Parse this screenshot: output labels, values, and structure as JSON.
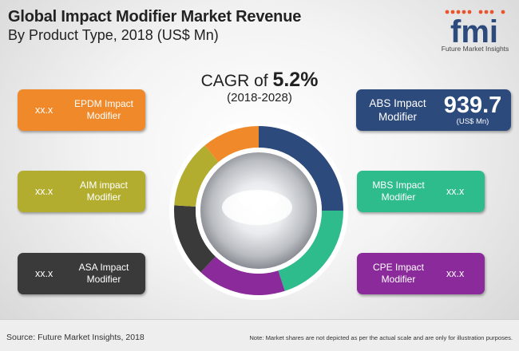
{
  "title": "Global Impact Modifier Market Revenue",
  "subtitle": "By Product Type, 2018 (US$ Mn)",
  "logo": {
    "text": "fmi",
    "tagline": "Future Market Insights"
  },
  "cagr": {
    "prefix": "CAGR of ",
    "value": "5.2%",
    "period": "(2018-2028)"
  },
  "highlight": {
    "label": "ABS Impact Modifier",
    "value": "939.7",
    "unit": "(US$ Mn)",
    "color": "#2c4a7c"
  },
  "segments_left": [
    {
      "label": "EPDM Impact Modifier",
      "value": "xx.x",
      "color": "#f0892a"
    },
    {
      "label": "AIM impact Modifier",
      "value": "xx.x",
      "color": "#b3ad2f"
    },
    {
      "label": "ASA Impact Modifier",
      "value": "xx.x",
      "color": "#3a3a3a"
    }
  ],
  "segments_right": [
    {
      "label": "MBS Impact Modifier",
      "value": "xx.x",
      "color": "#2ebc8c"
    },
    {
      "label": "CPE Impact Modifier",
      "value": "xx.x",
      "color": "#8b2a9a"
    }
  ],
  "footer": {
    "source": "Source: Future Market Insights, 2018",
    "note": "Note: Market shares are not depicted as per the actual scale and are only for illustration purposes."
  },
  "chart_data": {
    "type": "pie",
    "categories": [
      "ABS Impact Modifier",
      "MBS Impact Modifier",
      "CPE Impact Modifier",
      "ASA Impact Modifier",
      "AIM impact Modifier",
      "EPDM Impact Modifier"
    ],
    "values": [
      25,
      20,
      17,
      14,
      13,
      11
    ],
    "colors": [
      "#2c4a7c",
      "#2ebc8c",
      "#8b2a9a",
      "#3a3a3a",
      "#b3ad2f",
      "#f0892a"
    ],
    "value_labels": [
      "939.7",
      "xx.x",
      "xx.x",
      "xx.x",
      "xx.x",
      "xx.x"
    ],
    "style": "donut",
    "title": "Global Impact Modifier Market Revenue"
  }
}
